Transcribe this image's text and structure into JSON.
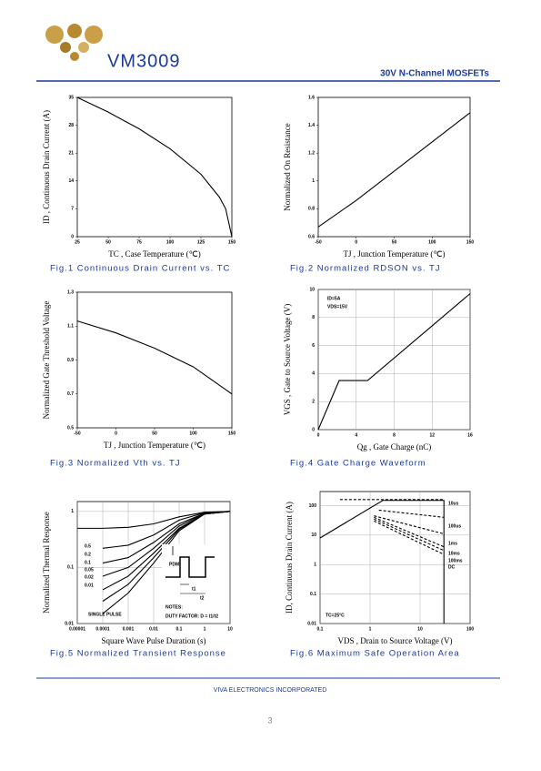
{
  "header": {
    "brand": "VM3009",
    "product_line": "30V N-Channel MOSFETs"
  },
  "footer": {
    "company": "VIVA ELECTRONICS INCORPORATED",
    "page": "3"
  },
  "chart_data": [
    {
      "type": "line",
      "title": "Fig.1   Continuous Drain Current vs. TC",
      "x_label": "TC , Case Temperature (℃)",
      "y_label": "ID , Continuous Drain Current (A)",
      "x": [
        25,
        50,
        75,
        100,
        125,
        140,
        145,
        150
      ],
      "series": [
        {
          "color": "#000000",
          "values": [
            35,
            31.3,
            27.1,
            22.1,
            15.7,
            9.9,
            7,
            0
          ]
        }
      ],
      "xlim": [
        25,
        150
      ],
      "ylim": [
        0,
        35
      ],
      "xticks": [
        25,
        50,
        75,
        100,
        125,
        150
      ],
      "yticks": [
        0,
        7,
        14,
        21,
        28,
        35
      ],
      "grid": false
    },
    {
      "type": "line",
      "title": "Fig.2   Normalized RDSON vs. TJ",
      "x_label": "TJ , Junction Temperature (℃)",
      "y_label": "Normalized On Resistance",
      "x": [
        -50,
        0,
        50,
        100,
        150
      ],
      "series": [
        {
          "color": "#000000",
          "values": [
            0.67,
            0.86,
            1.07,
            1.28,
            1.49
          ]
        }
      ],
      "xlim": [
        -50,
        150
      ],
      "ylim": [
        0.6,
        1.6
      ],
      "xticks": [
        -50,
        0,
        50,
        100,
        150
      ],
      "yticks": [
        0.6,
        0.8,
        1,
        1.2,
        1.4,
        1.6
      ],
      "grid": false
    },
    {
      "type": "line",
      "title": "Fig.3   Normalized Vth vs. TJ",
      "x_label": "TJ , Junction Temperature (℃)",
      "y_label": "Normalized Gate Threshold Voltage",
      "x": [
        -50,
        0,
        50,
        100,
        150
      ],
      "series": [
        {
          "color": "#000000",
          "values": [
            1.13,
            1.06,
            0.97,
            0.86,
            0.7
          ]
        }
      ],
      "xlim": [
        -50,
        150
      ],
      "ylim": [
        0.5,
        1.3
      ],
      "xticks": [
        -50,
        0,
        50,
        100,
        150
      ],
      "yticks": [
        0.5,
        0.7,
        0.9,
        1.1,
        1.3
      ],
      "grid": false
    },
    {
      "type": "line",
      "title": "Fig.4   Gate Charge Waveform",
      "x_label": "Qg , Gate Charge (nC)",
      "y_label": "VGS , Gate to Source Voltage (V)",
      "x": [
        0,
        2.2,
        5.2,
        16
      ],
      "series": [
        {
          "color": "#000000",
          "values": [
            0,
            3.5,
            3.5,
            9.7
          ]
        }
      ],
      "xlim": [
        0,
        16
      ],
      "ylim": [
        0,
        10
      ],
      "xticks": [
        0,
        4,
        8,
        12,
        16
      ],
      "yticks": [
        0,
        2,
        4,
        6,
        8,
        10
      ],
      "grid": true,
      "annotations": [
        "ID=5A",
        "VDS=15V"
      ]
    },
    {
      "type": "line",
      "title": "Fig.5   Normalized Transient Response",
      "x_label": "Square Wave Pulse Duration (s)",
      "y_label": "Normalized Thermal Response",
      "x": [
        1e-05,
        0.0001,
        0.001,
        0.01,
        0.1,
        1,
        10
      ],
      "xlog": true,
      "ylog": true,
      "series": [
        {
          "name": "0.5",
          "color": "#000000",
          "values": [
            0.5,
            0.5,
            0.52,
            0.6,
            0.8,
            0.97,
            1
          ]
        },
        {
          "name": "0.2",
          "color": "#000000",
          "values": [
            null,
            0.22,
            0.25,
            0.38,
            0.7,
            0.95,
            1
          ]
        },
        {
          "name": "0.1",
          "color": "#000000",
          "values": [
            null,
            0.12,
            0.15,
            0.28,
            0.6,
            0.93,
            1
          ]
        },
        {
          "name": "0.05",
          "color": "#000000",
          "values": [
            null,
            0.07,
            0.1,
            0.22,
            0.55,
            0.92,
            1
          ]
        },
        {
          "name": "0.02",
          "color": "#000000",
          "values": [
            null,
            0.04,
            0.07,
            0.18,
            0.5,
            0.9,
            1
          ]
        },
        {
          "name": "0.01",
          "color": "#000000",
          "values": [
            null,
            0.025,
            0.05,
            0.15,
            0.48,
            0.9,
            1
          ]
        },
        {
          "name": "SINGLE PULSE",
          "color": "#000000",
          "values": [
            null,
            0.015,
            0.035,
            0.12,
            0.45,
            0.9,
            1
          ]
        }
      ],
      "xlim": [
        1e-05,
        10
      ],
      "ylim": [
        0.01,
        1.5
      ],
      "xticks": [
        1e-05,
        0.0001,
        0.001,
        0.01,
        0.1,
        1,
        10
      ],
      "yticks": [
        0.01,
        0.1,
        1
      ],
      "grid": true,
      "annotations": [
        "PDM",
        "t1",
        "t2",
        "NOTES:",
        "DUTY FACTOR: D = t1/t2"
      ]
    },
    {
      "type": "line",
      "title": "Fig.6   Maximum Safe Operation Area",
      "x_label": "VDS , Drain to Source Voltage (V)",
      "y_label": "ID, Continuous Drain Current (A)",
      "xlog": true,
      "ylog": true,
      "boundary": {
        "x": [
          0.1,
          1.8,
          30,
          30
        ],
        "values": [
          8,
          150,
          150,
          0.01
        ]
      },
      "series": [
        {
          "name": "10us",
          "color": "#000000",
          "line_style": "dashed",
          "x": [
            0.25,
            30
          ],
          "values": [
            160,
            160
          ]
        },
        {
          "name": "100us",
          "color": "#000000",
          "line_style": "dashed",
          "x": [
            1.5,
            30
          ],
          "values": [
            70,
            40
          ]
        },
        {
          "name": "1ms",
          "color": "#000000",
          "line_style": "dashed",
          "x": [
            1.2,
            30
          ],
          "values": [
            45,
            11
          ]
        },
        {
          "name": "10ms",
          "color": "#000000",
          "line_style": "dashed",
          "x": [
            1.2,
            30
          ],
          "values": [
            40,
            4
          ]
        },
        {
          "name": "100ms",
          "color": "#000000",
          "line_style": "dashed",
          "x": [
            1.2,
            30
          ],
          "values": [
            35,
            3
          ]
        },
        {
          "name": "DC",
          "color": "#000000",
          "line_style": "dashed",
          "x": [
            1.2,
            30
          ],
          "values": [
            30,
            2.2
          ]
        }
      ],
      "xlim": [
        0.1,
        100
      ],
      "ylim": [
        0.01,
        300
      ],
      "xticks": [
        0.1,
        1,
        10,
        100
      ],
      "yticks": [
        0.01,
        0.1,
        1,
        10,
        100
      ],
      "grid": true,
      "annotations": [
        "TC=25°C"
      ]
    }
  ]
}
